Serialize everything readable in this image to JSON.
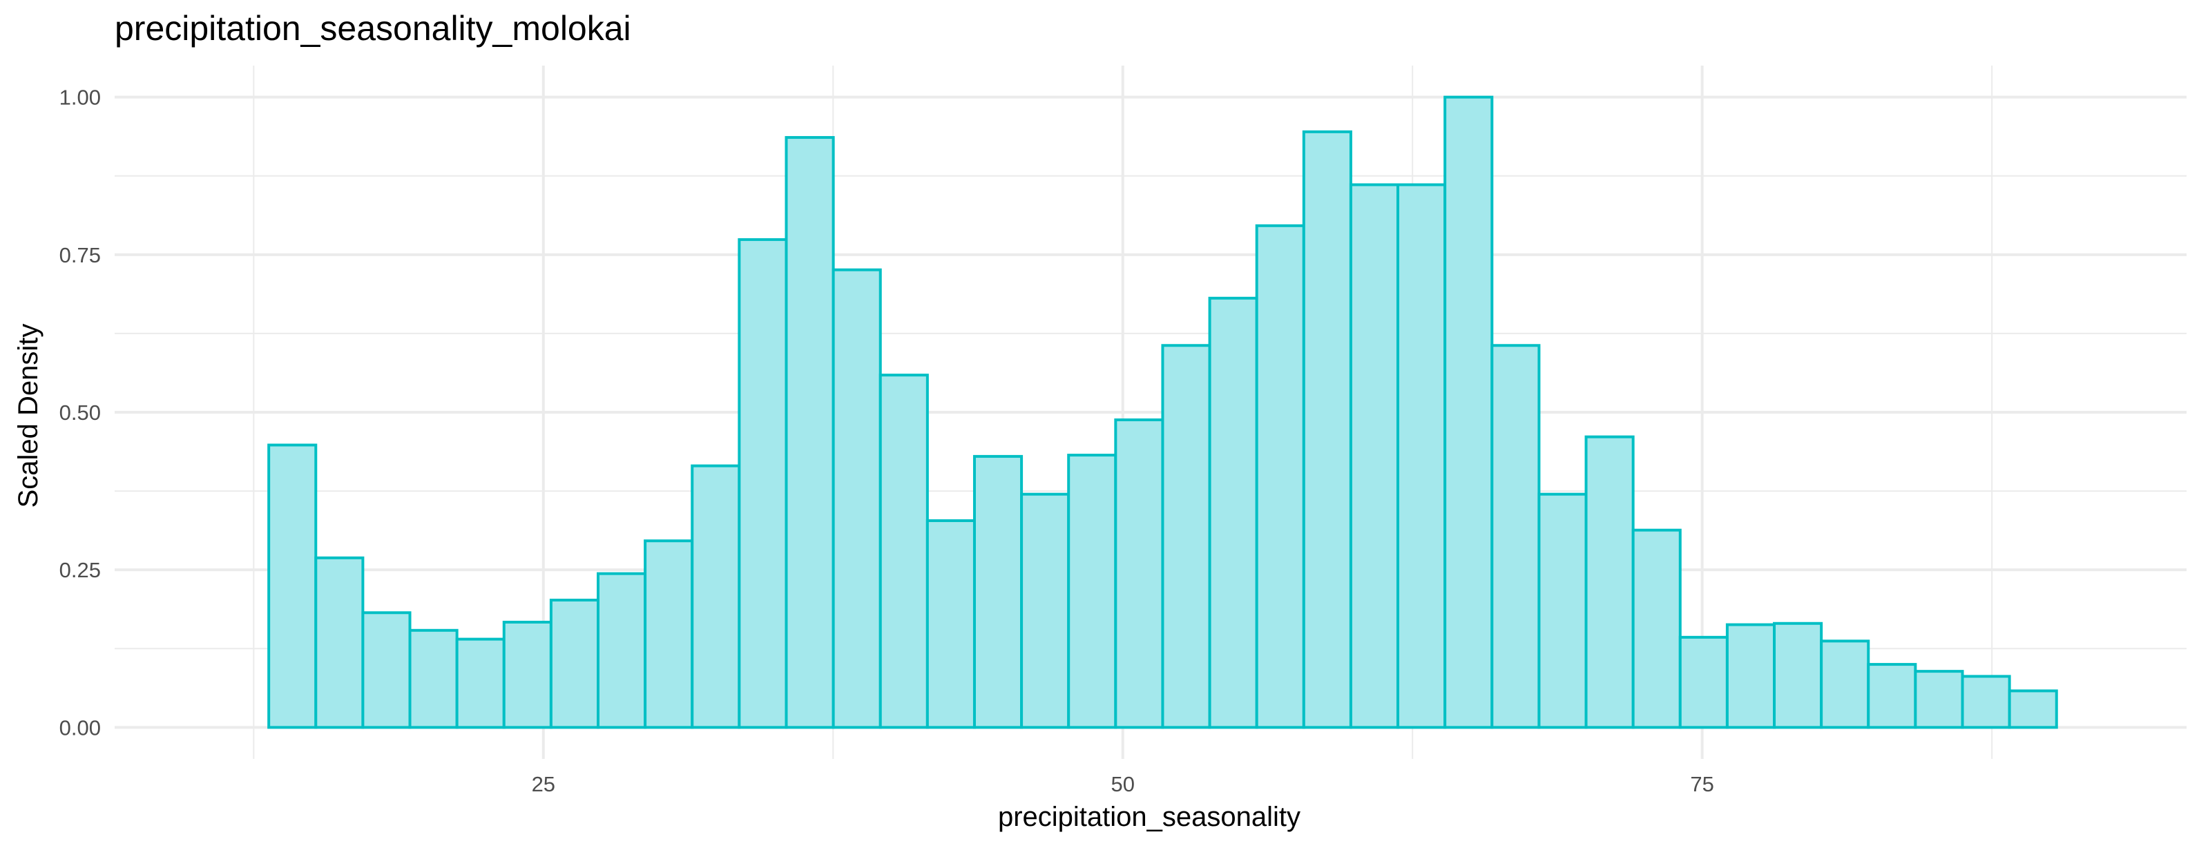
{
  "chart_data": {
    "type": "bar",
    "title": "precipitation_seasonality_molokai",
    "xlabel": "precipitation_seasonality",
    "ylabel": "Scaled Density",
    "xlim": [
      6.5,
      95.9
    ],
    "ylim": [
      -0.05,
      1.05
    ],
    "x_ticks": [
      25,
      50,
      75
    ],
    "x_tick_labels": [
      "25",
      "50",
      "75"
    ],
    "y_ticks": [
      0,
      0.25,
      0.5,
      0.75,
      1.0
    ],
    "y_tick_labels": [
      "0.00",
      "0.25",
      "0.50",
      "0.75",
      "1.00"
    ],
    "grid": true,
    "bar_fill": "#a4e8ec",
    "bar_stroke": "#00bfc4",
    "bins": [
      {
        "x0": 13.15,
        "x1": 15.18,
        "value": 0.448
      },
      {
        "x0": 15.18,
        "x1": 17.21,
        "value": 0.269
      },
      {
        "x0": 17.21,
        "x1": 19.24,
        "value": 0.182
      },
      {
        "x0": 19.24,
        "x1": 21.27,
        "value": 0.154
      },
      {
        "x0": 21.27,
        "x1": 23.3,
        "value": 0.14
      },
      {
        "x0": 23.3,
        "x1": 25.33,
        "value": 0.167
      },
      {
        "x0": 25.33,
        "x1": 27.36,
        "value": 0.202
      },
      {
        "x0": 27.36,
        "x1": 29.39,
        "value": 0.244
      },
      {
        "x0": 29.39,
        "x1": 31.42,
        "value": 0.296
      },
      {
        "x0": 31.42,
        "x1": 33.45,
        "value": 0.415
      },
      {
        "x0": 33.45,
        "x1": 35.48,
        "value": 0.774
      },
      {
        "x0": 35.48,
        "x1": 37.51,
        "value": 0.936
      },
      {
        "x0": 37.51,
        "x1": 39.54,
        "value": 0.726
      },
      {
        "x0": 39.54,
        "x1": 41.57,
        "value": 0.559
      },
      {
        "x0": 41.57,
        "x1": 43.6,
        "value": 0.328
      },
      {
        "x0": 43.6,
        "x1": 45.63,
        "value": 0.43
      },
      {
        "x0": 45.63,
        "x1": 47.66,
        "value": 0.37
      },
      {
        "x0": 47.66,
        "x1": 49.69,
        "value": 0.432
      },
      {
        "x0": 49.69,
        "x1": 51.72,
        "value": 0.488
      },
      {
        "x0": 51.72,
        "x1": 53.75,
        "value": 0.606
      },
      {
        "x0": 53.75,
        "x1": 55.78,
        "value": 0.681
      },
      {
        "x0": 55.78,
        "x1": 57.81,
        "value": 0.796
      },
      {
        "x0": 57.81,
        "x1": 59.84,
        "value": 0.945
      },
      {
        "x0": 59.84,
        "x1": 61.87,
        "value": 0.861
      },
      {
        "x0": 61.87,
        "x1": 63.9,
        "value": 0.861
      },
      {
        "x0": 63.9,
        "x1": 65.93,
        "value": 1.0
      },
      {
        "x0": 65.93,
        "x1": 67.96,
        "value": 0.606
      },
      {
        "x0": 67.96,
        "x1": 69.99,
        "value": 0.37
      },
      {
        "x0": 69.99,
        "x1": 72.02,
        "value": 0.461
      },
      {
        "x0": 72.02,
        "x1": 74.05,
        "value": 0.313
      },
      {
        "x0": 74.05,
        "x1": 76.08,
        "value": 0.143
      },
      {
        "x0": 76.08,
        "x1": 78.11,
        "value": 0.163
      },
      {
        "x0": 78.11,
        "x1": 80.14,
        "value": 0.165
      },
      {
        "x0": 80.14,
        "x1": 82.17,
        "value": 0.137
      },
      {
        "x0": 82.17,
        "x1": 84.2,
        "value": 0.1
      },
      {
        "x0": 84.2,
        "x1": 86.23,
        "value": 0.089
      },
      {
        "x0": 86.23,
        "x1": 88.26,
        "value": 0.081
      },
      {
        "x0": 88.26,
        "x1": 90.29,
        "value": 0.058
      }
    ]
  }
}
